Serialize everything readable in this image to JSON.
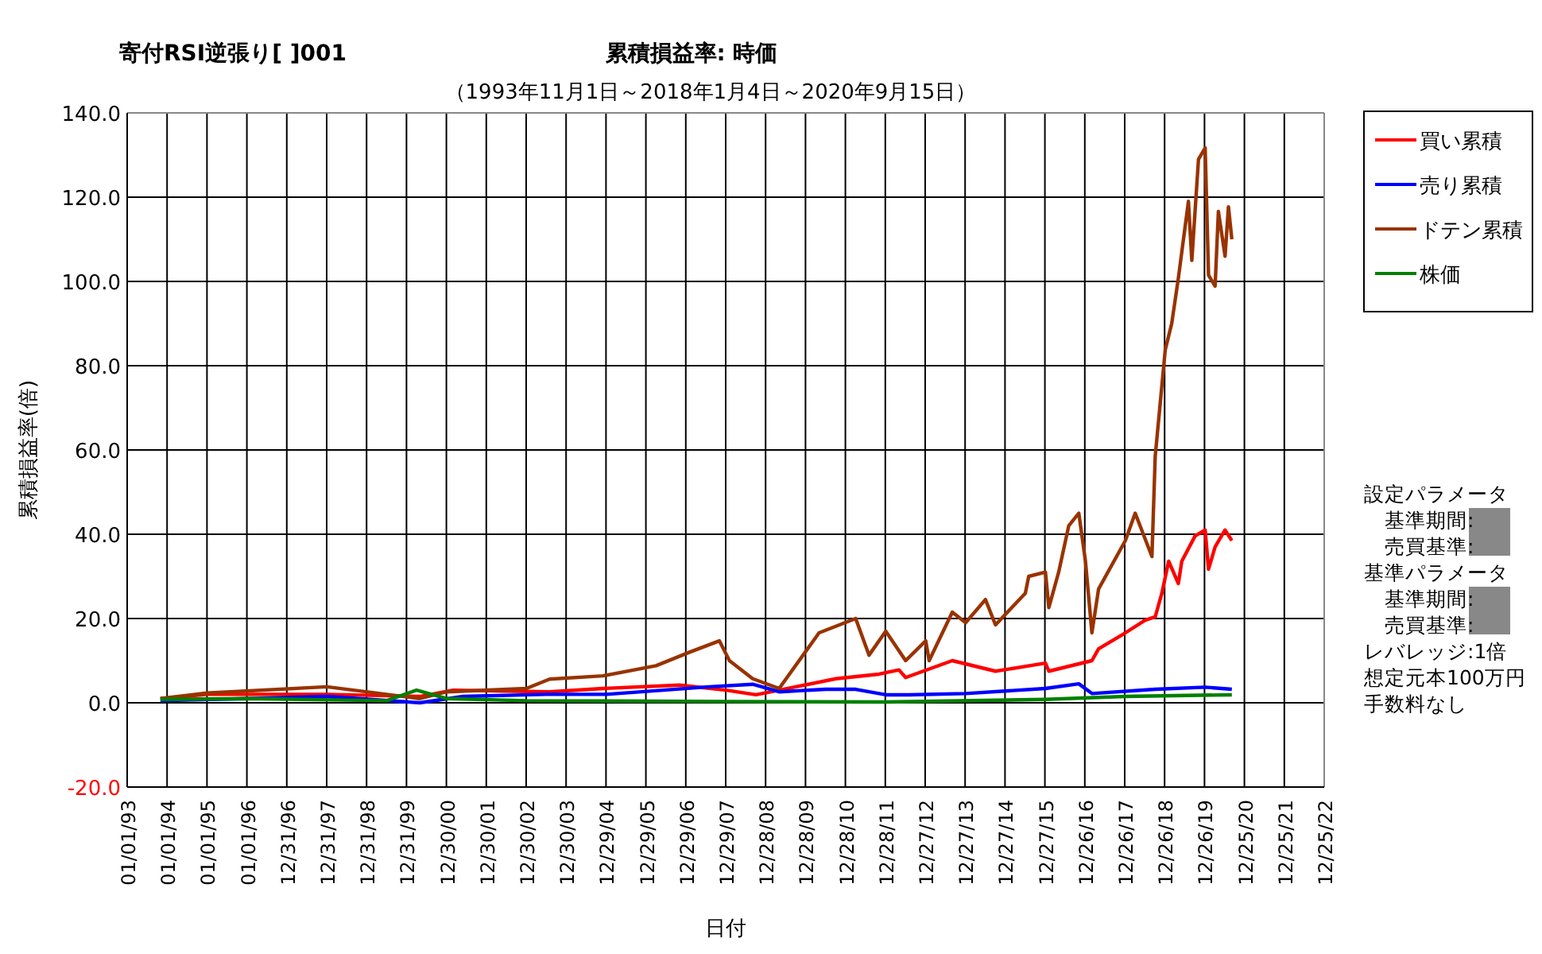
{
  "chart_data": {
    "type": "line",
    "title": "累積損益率:  時価",
    "subtitle": "（1993年11月1日～2018年1月4日～2020年9月15日）",
    "xlabel": "日付",
    "ylabel": "累積損益率(倍)",
    "annotations": [
      "寄付RSI逆張り[ ]001",
      "設定パラメータ",
      "　基準期間:",
      "　売買基準:",
      "基準パラメータ",
      "　基準期間:",
      "　売買基準:",
      "レバレッジ:1倍",
      "想定元本100万円",
      "手数料なし"
    ],
    "xlim": [
      "1993-01-01",
      "2022-12-25"
    ],
    "xticks": [
      {
        "value": "1993-01-01",
        "label": "01/01/93"
      },
      {
        "value": "1994-01-01",
        "label": "01/01/94"
      },
      {
        "value": "1995-01-01",
        "label": "01/01/95"
      },
      {
        "value": "1996-01-01",
        "label": "01/01/96"
      },
      {
        "value": "1996-12-31",
        "label": "12/31/96"
      },
      {
        "value": "1997-12-31",
        "label": "12/31/97"
      },
      {
        "value": "1998-12-31",
        "label": "12/31/98"
      },
      {
        "value": "1999-12-31",
        "label": "12/31/99"
      },
      {
        "value": "2000-12-30",
        "label": "12/30/00"
      },
      {
        "value": "2001-12-30",
        "label": "12/30/01"
      },
      {
        "value": "2002-12-30",
        "label": "12/30/02"
      },
      {
        "value": "2003-12-30",
        "label": "12/30/03"
      },
      {
        "value": "2004-12-29",
        "label": "12/29/04"
      },
      {
        "value": "2005-12-29",
        "label": "12/29/05"
      },
      {
        "value": "2006-12-29",
        "label": "12/29/06"
      },
      {
        "value": "2007-12-29",
        "label": "12/29/07"
      },
      {
        "value": "2008-12-28",
        "label": "12/28/08"
      },
      {
        "value": "2009-12-28",
        "label": "12/28/09"
      },
      {
        "value": "2010-12-28",
        "label": "12/28/10"
      },
      {
        "value": "2011-12-28",
        "label": "12/28/11"
      },
      {
        "value": "2012-12-27",
        "label": "12/27/12"
      },
      {
        "value": "2013-12-27",
        "label": "12/27/13"
      },
      {
        "value": "2014-12-27",
        "label": "12/27/14"
      },
      {
        "value": "2015-12-27",
        "label": "12/27/15"
      },
      {
        "value": "2016-12-26",
        "label": "12/26/16"
      },
      {
        "value": "2017-12-26",
        "label": "12/26/17"
      },
      {
        "value": "2018-12-26",
        "label": "12/26/18"
      },
      {
        "value": "2019-12-26",
        "label": "12/26/19"
      },
      {
        "value": "2020-12-25",
        "label": "12/25/20"
      },
      {
        "value": "2021-12-25",
        "label": "12/25/21"
      },
      {
        "value": "2022-12-25",
        "label": "12/25/22"
      }
    ],
    "ylim": [
      -20,
      140
    ],
    "yticks": [
      {
        "value": -20,
        "label": "-20.0"
      },
      {
        "value": 0,
        "label": "0.0"
      },
      {
        "value": 20,
        "label": "20.0"
      },
      {
        "value": 40,
        "label": "40.0"
      },
      {
        "value": 60,
        "label": "60.0"
      },
      {
        "value": 80,
        "label": "80.0"
      },
      {
        "value": 100,
        "label": "100.0"
      },
      {
        "value": 120,
        "label": "120.0"
      },
      {
        "value": 140,
        "label": "140.0"
      }
    ],
    "grid": true,
    "legend": "right",
    "marker": "none",
    "series": [
      {
        "name": "買い累積",
        "color": "#ff0000",
        "x": [
          "1993-11",
          "1995-01",
          "1998-01",
          "2000-05",
          "2001-03",
          "2003-08",
          "2004-12",
          "2006-11",
          "2008-01",
          "2008-10",
          "2009-05",
          "2010-10",
          "2011-11",
          "2012-05",
          "2012-07",
          "2013-09",
          "2014-10",
          "2016-01",
          "2016-02",
          "2017-03",
          "2017-05",
          "2018-01",
          "2018-07",
          "2018-10",
          "2018-12",
          "2019-02",
          "2019-05",
          "2019-06",
          "2019-10",
          "2020-01",
          "2020-02",
          "2020-04",
          "2020-07",
          "2020-09"
        ],
        "values": [
          1,
          2,
          2,
          1.5,
          3,
          2.6,
          3.4,
          4.2,
          3,
          1.9,
          3,
          5.7,
          6.8,
          7.8,
          6,
          10,
          7.5,
          9.4,
          7.5,
          10,
          12.8,
          16.6,
          19.6,
          20.4,
          26,
          33.6,
          28.3,
          33.6,
          39.6,
          41,
          31.7,
          37,
          41,
          38.5
        ]
      },
      {
        "name": "売り累積",
        "color": "#0000ff",
        "x": [
          "1993-11",
          "1996-01",
          "1998-01",
          "2000-05",
          "2001-06",
          "2003-07",
          "2005-01",
          "2007-08",
          "2008-09",
          "2009-05",
          "2010-07",
          "2011-04",
          "2012-01",
          "2012-08",
          "2014-01",
          "2016-01",
          "2016-11",
          "2017-03",
          "2018-10",
          "2020-01",
          "2020-09"
        ],
        "values": [
          0.5,
          1,
          1.5,
          0,
          1.5,
          2,
          2,
          3.8,
          4.4,
          2.6,
          3.2,
          3.2,
          1.9,
          1.9,
          2.2,
          3.4,
          4.5,
          2.2,
          3.2,
          3.7,
          3.2
        ]
      },
      {
        "name": "ドテン累積",
        "color": "#993300",
        "x": [
          "1993-11",
          "1995-01",
          "1998-01",
          "2000-05",
          "2001-01",
          "2003-01",
          "2003-08",
          "2004-12",
          "2006-04",
          "2007-02",
          "2007-11",
          "2008-02",
          "2008-09",
          "2009-05",
          "2010-05",
          "2011-04",
          "2011-08",
          "2012-01",
          "2012-07",
          "2013-01",
          "2013-02",
          "2013-09",
          "2014-01",
          "2014-07",
          "2014-10",
          "2015-07",
          "2015-08",
          "2016-01",
          "2016-02",
          "2016-05",
          "2016-08",
          "2016-11",
          "2017-01",
          "2017-03",
          "2017-05",
          "2018-01",
          "2018-04",
          "2018-09",
          "2018-10",
          "2019-01",
          "2019-03",
          "2019-05",
          "2019-08",
          "2019-09",
          "2019-11",
          "2020-01",
          "2020-02",
          "2020-04",
          "2020-05",
          "2020-07",
          "2020-08",
          "2020-09"
        ],
        "values": [
          1,
          2.3,
          3.8,
          1,
          2.6,
          3.4,
          5.6,
          6.4,
          8.8,
          12,
          14.7,
          10,
          5.7,
          3.4,
          16.6,
          20,
          11.3,
          17,
          10,
          14.7,
          10,
          21.5,
          19,
          24.5,
          18.5,
          26,
          30,
          31,
          22.6,
          31,
          42,
          45,
          33.6,
          16.6,
          27,
          38.5,
          45,
          34.7,
          58.5,
          83.8,
          90,
          100.8,
          119,
          105,
          129,
          131.7,
          101.5,
          98.9,
          116.6,
          106,
          117.7,
          110
        ]
      },
      {
        "name": "株価",
        "color": "#008000",
        "x": [
          "1993-11",
          "1996-01",
          "1999-07",
          "2000-04",
          "2001-01",
          "2003-01",
          "2008-01",
          "2012-01",
          "2016-01",
          "2018-01",
          "2020-09"
        ],
        "values": [
          0.8,
          1,
          0.5,
          3,
          1,
          0.5,
          0.3,
          0.2,
          0.8,
          1.5,
          1.9
        ]
      }
    ]
  }
}
